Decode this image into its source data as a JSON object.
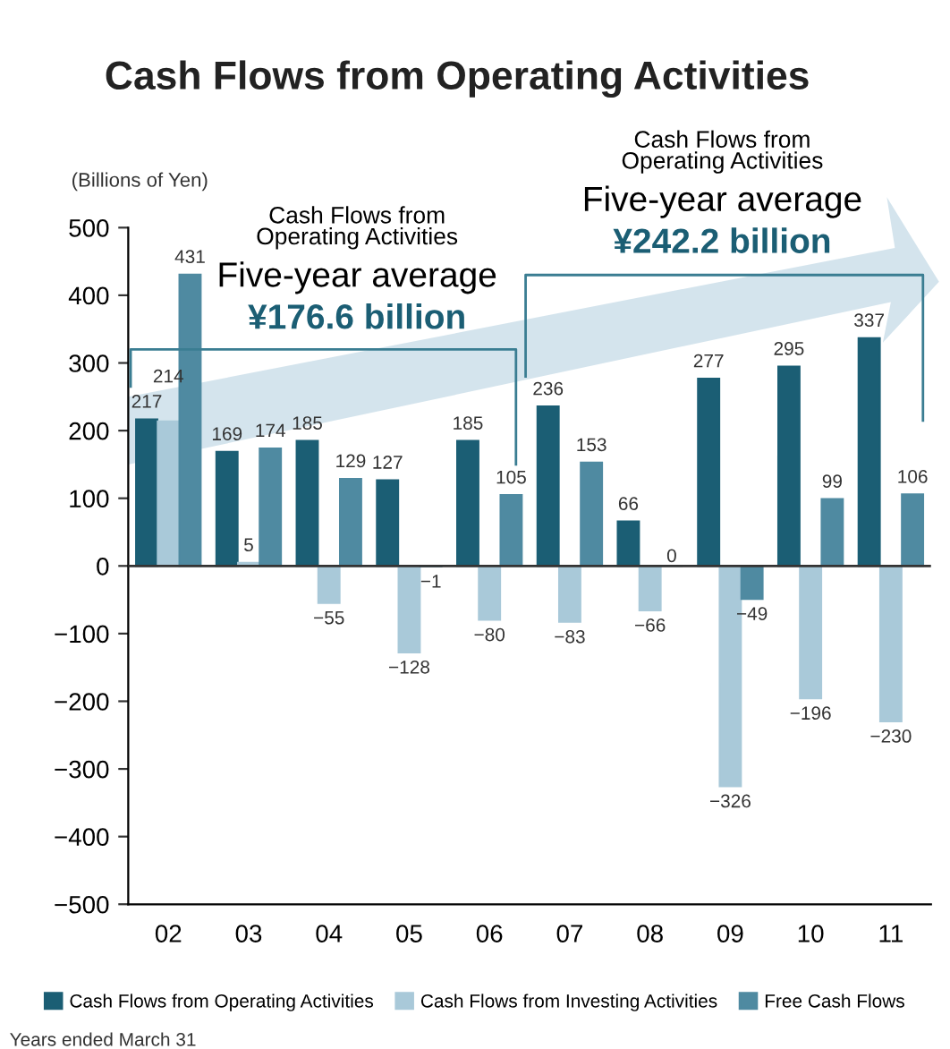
{
  "chart_data": {
    "type": "bar",
    "title": "Cash Flows from Operating Activities",
    "ylabel": "(Billions of Yen)",
    "categories": [
      "02",
      "03",
      "04",
      "05",
      "06",
      "07",
      "08",
      "09",
      "10",
      "11"
    ],
    "series": [
      {
        "name": "Cash Flows from Operating Activities",
        "color": "#1b5e74",
        "values": [
          217,
          169,
          185,
          127,
          185,
          236,
          66,
          277,
          295,
          337
        ]
      },
      {
        "name": "Cash Flows from Investing Activities",
        "color": "#a9c9d9",
        "values": [
          214,
          5,
          -55,
          -128,
          -80,
          -83,
          -66,
          -326,
          -196,
          -230
        ]
      },
      {
        "name": "Free Cash Flows",
        "color": "#4f8aa1",
        "values": [
          431,
          174,
          129,
          -1,
          105,
          153,
          0,
          -49,
          99,
          106
        ]
      }
    ],
    "ylim": [
      -500,
      500
    ],
    "yticks": [
      {
        "value": -500,
        "label": "−500"
      },
      {
        "value": -400,
        "label": "−400"
      },
      {
        "value": -300,
        "label": "−300"
      },
      {
        "value": -200,
        "label": "−200"
      },
      {
        "value": -100,
        "label": "−100"
      },
      0,
      100,
      200,
      300,
      400,
      500
    ],
    "ref_lines": [
      {
        "axis": "y",
        "value": 0,
        "color": "#333333"
      }
    ],
    "data_labels": true,
    "grid": false,
    "legend": "bottom",
    "annotations": [
      "Cash Flows from\nOperating Activities",
      "Five-year average",
      "¥176.6 billion",
      "Cash Flows from\nOperating Activities",
      "Five-year average",
      "¥242.2 billion",
      "Years ended March 31"
    ]
  }
}
